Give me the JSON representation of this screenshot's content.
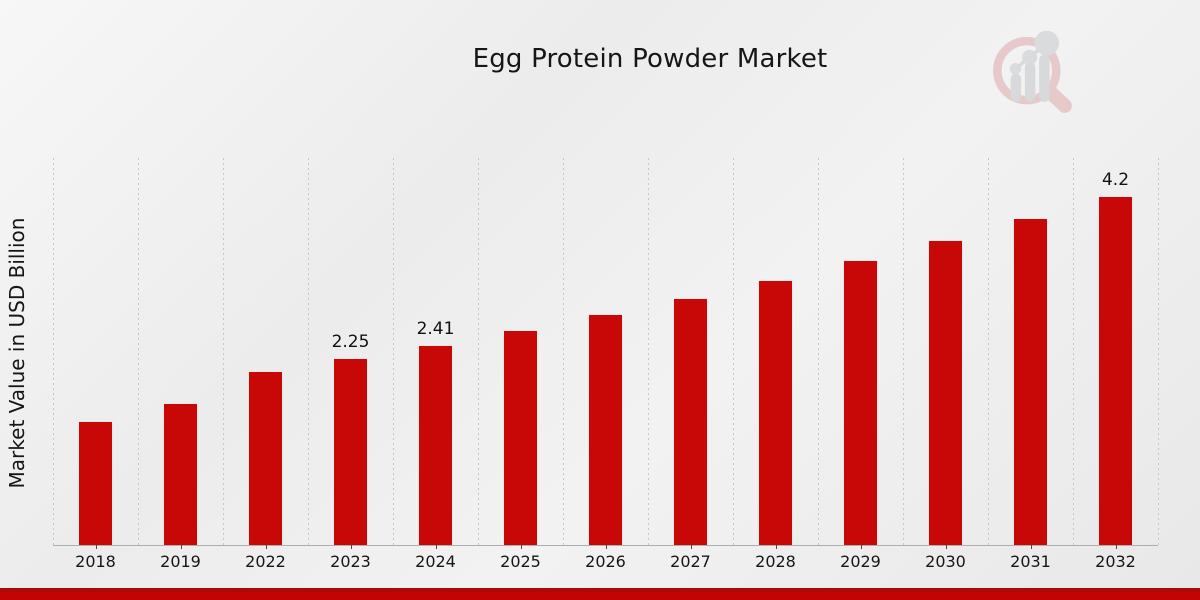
{
  "page": {
    "title": "Egg Protein Powder Market",
    "footer_banner": "red-ribbon"
  },
  "colors": {
    "bar": "#c80707",
    "banner": "#c30404",
    "background": "#eeeeee",
    "gridline": "#c6c6c6",
    "axis_line": "#aeaeae",
    "text": "#161616",
    "logo_ring_pink": "#dfa9ac",
    "logo_bars_gray": "#c3c6ca"
  },
  "chart_data": {
    "type": "bar",
    "title": "Egg Protein Powder Market",
    "xlabel": "",
    "ylabel": "Market Value in USD Billion",
    "categories": [
      "2018",
      "2019",
      "2022",
      "2023",
      "2024",
      "2025",
      "2026",
      "2027",
      "2028",
      "2029",
      "2030",
      "2031",
      "2032"
    ],
    "values": [
      1.49,
      1.71,
      2.1,
      2.25,
      2.41,
      2.59,
      2.78,
      2.98,
      3.19,
      3.43,
      3.67,
      3.94,
      4.2
    ],
    "data_labels": [
      "",
      "",
      "",
      "2.25",
      "2.41",
      "",
      "",
      "",
      "",
      "",
      "",
      "",
      "4.2"
    ],
    "ylim": [
      0,
      4.66
    ],
    "grid": "vertical-dashed-category-boundaries",
    "legend": "none",
    "bar_color": "#c80707"
  }
}
